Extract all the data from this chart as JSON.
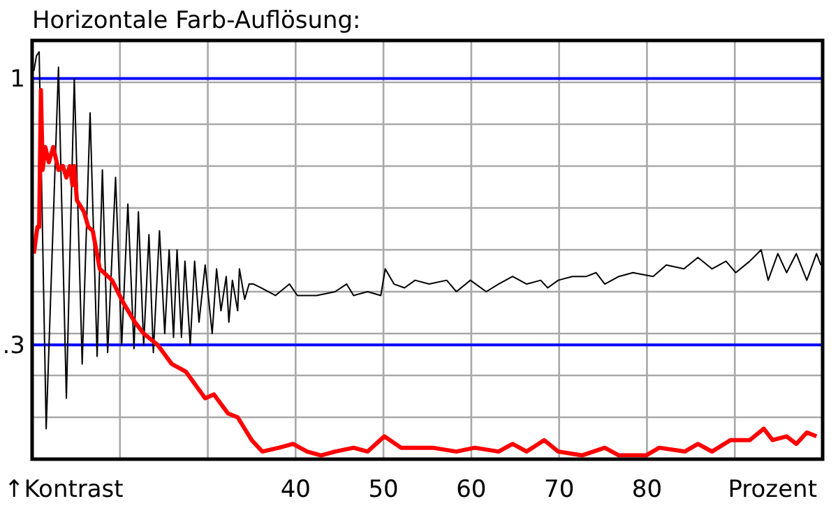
{
  "chart_data": {
    "type": "line",
    "title": "Horizontale Farb-Auflösung:",
    "xlabel": "Prozent",
    "ylabel": "↑Kontrast",
    "xlim": [
      10,
      100
    ],
    "ylim": [
      0,
      1.1
    ],
    "xticks": [
      {
        "value": 20,
        "label": null
      },
      {
        "value": 30,
        "label": null
      },
      40,
      50,
      60,
      70,
      80,
      {
        "value": 90,
        "label": null
      }
    ],
    "yticks": [
      {
        "value": 0.11,
        "label": null
      },
      {
        "value": 0.22,
        "label": null
      },
      {
        "value": 0.33,
        "label": null
      },
      {
        "value": 0.44,
        "label": null
      },
      {
        "value": 0.55,
        "label": null
      },
      {
        "value": 0.66,
        "label": null
      },
      {
        "value": 0.77,
        "label": null
      },
      {
        "value": 0.88,
        "label": null
      },
      {
        "value": 0.99,
        "label": null
      }
    ],
    "grid": true,
    "marker": "none",
    "line_style": "solid",
    "ref_lines": [
      {
        "axis": "y",
        "value": 1,
        "label": "1",
        "color": "#0000ff"
      },
      {
        "axis": "y",
        "value": 0.3,
        "label": ".3",
        "color": "#0000ff"
      }
    ],
    "series": [
      {
        "color": "#000000",
        "x": [
          10.2,
          10.5,
          10.8,
          11.6,
          13.0,
          13.9,
          14.8,
          15.7,
          16.6,
          17.4,
          18.0,
          18.6,
          19.5,
          20.2,
          20.9,
          21.6,
          22.1,
          22.7,
          23.3,
          23.8,
          24.5,
          25.1,
          25.6,
          26.1,
          26.5,
          27.0,
          27.4,
          28.0,
          28.5,
          29.0,
          29.7,
          30.5,
          31.0,
          31.5,
          32.1,
          32.4,
          32.8,
          33.4,
          33.6,
          34.2,
          34.7,
          35.2,
          36.1,
          37.7,
          39.3,
          40.2,
          42.4,
          44.5,
          45.8,
          46.6,
          48.2,
          49.7,
          50.2,
          51.2,
          52.4,
          53.6,
          55.2,
          57.2,
          58.3,
          59.9,
          61.7,
          63.1,
          64.7,
          66.3,
          67.9,
          68.7,
          69.9,
          71.5,
          73.1,
          74.2,
          75.2,
          76.8,
          78.4,
          80.7,
          82.2,
          84.2,
          85.8,
          87.4,
          89.0,
          90.1,
          91.7,
          93.0,
          93.8,
          94.9,
          95.9,
          97.0,
          98.2,
          99.3,
          99.8
        ],
        "values": [
          1.02,
          1.06,
          1.07,
          0.08,
          1.03,
          0.16,
          1.0,
          0.25,
          0.91,
          0.27,
          0.76,
          0.28,
          0.74,
          0.3,
          0.67,
          0.29,
          0.65,
          0.3,
          0.59,
          0.28,
          0.6,
          0.33,
          0.55,
          0.32,
          0.55,
          0.32,
          0.52,
          0.3,
          0.52,
          0.36,
          0.51,
          0.33,
          0.5,
          0.39,
          0.48,
          0.36,
          0.47,
          0.39,
          0.5,
          0.42,
          0.46,
          0.46,
          0.45,
          0.43,
          0.46,
          0.43,
          0.43,
          0.44,
          0.46,
          0.43,
          0.44,
          0.43,
          0.5,
          0.46,
          0.45,
          0.47,
          0.46,
          0.47,
          0.44,
          0.47,
          0.44,
          0.46,
          0.48,
          0.46,
          0.47,
          0.45,
          0.47,
          0.48,
          0.48,
          0.49,
          0.46,
          0.48,
          0.49,
          0.48,
          0.51,
          0.5,
          0.53,
          0.5,
          0.52,
          0.49,
          0.52,
          0.55,
          0.47,
          0.54,
          0.49,
          0.54,
          0.47,
          0.54,
          0.51
        ]
      },
      {
        "color": "#ff0000",
        "x": [
          10.2,
          10.6,
          10.8,
          11.0,
          11.2,
          11.5,
          11.9,
          12.4,
          13.0,
          13.5,
          13.9,
          14.3,
          14.6,
          14.8,
          15.1,
          15.9,
          16.4,
          16.9,
          17.7,
          19.1,
          20.4,
          21.7,
          22.7,
          24.3,
          25.9,
          27.5,
          29.7,
          30.7,
          32.3,
          33.4,
          35.0,
          36.2,
          38.1,
          39.7,
          41.3,
          42.9,
          44.5,
          46.6,
          48.2,
          50.1,
          52.0,
          53.6,
          55.6,
          58.3,
          60.4,
          63.1,
          64.7,
          66.3,
          68.3,
          69.9,
          72.6,
          75.2,
          76.8,
          79.9,
          81.4,
          84.3,
          85.8,
          87.4,
          89.5,
          91.7,
          93.3,
          94.3,
          95.9,
          97.0,
          98.2,
          99.3
        ],
        "values": [
          0.54,
          0.61,
          0.61,
          0.97,
          0.76,
          0.82,
          0.78,
          0.82,
          0.76,
          0.77,
          0.74,
          0.77,
          0.72,
          0.77,
          0.68,
          0.65,
          0.61,
          0.6,
          0.5,
          0.47,
          0.41,
          0.36,
          0.33,
          0.3,
          0.25,
          0.23,
          0.16,
          0.17,
          0.12,
          0.11,
          0.05,
          0.02,
          0.03,
          0.04,
          0.02,
          0.01,
          0.02,
          0.03,
          0.02,
          0.06,
          0.03,
          0.03,
          0.03,
          0.02,
          0.03,
          0.02,
          0.04,
          0.02,
          0.05,
          0.02,
          0.01,
          0.03,
          0.01,
          0.01,
          0.03,
          0.02,
          0.04,
          0.02,
          0.05,
          0.05,
          0.08,
          0.05,
          0.06,
          0.04,
          0.07,
          0.06
        ]
      }
    ]
  }
}
